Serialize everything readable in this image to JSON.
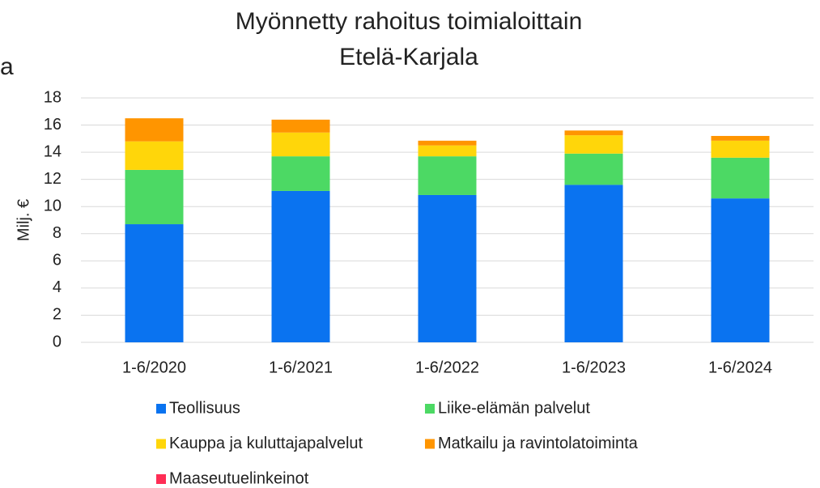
{
  "side_text": "a",
  "chart_data": {
    "type": "stacked_bar",
    "title": "Myönnetty rahoitus toimialoittain",
    "subtitle": "Etelä-Karjala",
    "y_label": "Milj. €",
    "categories": [
      "1-6/2020",
      "1-6/2021",
      "1-6/2022",
      "1-6/2023",
      "1-6/2024"
    ],
    "series": [
      {
        "name": "Teollisuus",
        "color": "#0a73f0",
        "values": [
          8.7,
          11.15,
          10.85,
          11.6,
          10.6
        ]
      },
      {
        "name": "Liike-elämän palvelut",
        "color": "#4cd964",
        "values": [
          4.0,
          2.55,
          2.85,
          2.3,
          3.0
        ]
      },
      {
        "name": "Kauppa ja kuluttajapalvelut",
        "color": "#ffd60a",
        "values": [
          2.1,
          1.75,
          0.8,
          1.35,
          1.25
        ]
      },
      {
        "name": "Matkailu ja ravintolatoiminta",
        "color": "#ff9500",
        "values": [
          1.7,
          0.95,
          0.35,
          0.35,
          0.35
        ]
      },
      {
        "name": "Maaseutuelinkeinot",
        "color": "#ff2d55",
        "values": [
          0,
          0,
          0,
          0,
          0
        ]
      }
    ],
    "ylim": [
      0,
      18
    ],
    "yticks": [
      0,
      2,
      4,
      6,
      8,
      10,
      12,
      14,
      16,
      18
    ],
    "grid": true
  }
}
